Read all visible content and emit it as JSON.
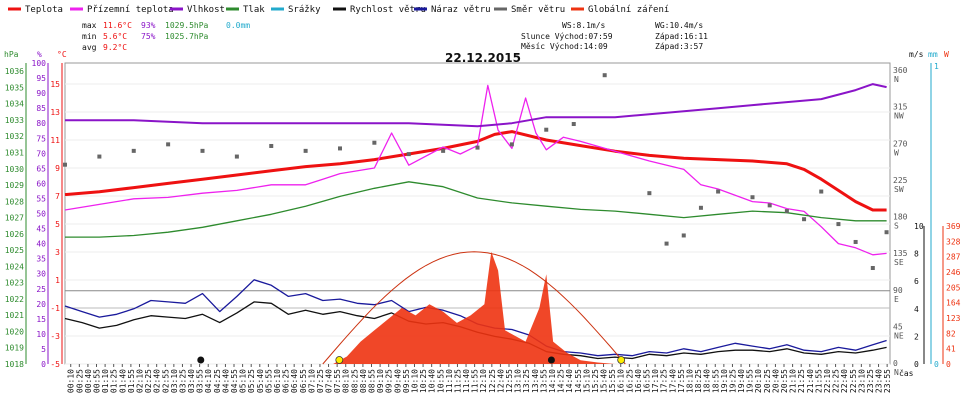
{
  "legend": [
    {
      "label": "Teplota",
      "color": "#ee1111"
    },
    {
      "label": "Přízemní teplota",
      "color": "#ee22ee"
    },
    {
      "label": "Vlhkost",
      "color": "#8a14c8"
    },
    {
      "label": "Tlak",
      "color": "#2e8b2e"
    },
    {
      "label": "Srážky",
      "color": "#22aacc"
    },
    {
      "label": "Rychlost větru",
      "color": "#111111"
    },
    {
      "label": "Náraz větru",
      "color": "#1a1a9c"
    },
    {
      "label": "Směr větru",
      "color": "#666666"
    },
    {
      "label": "Globální záření",
      "color": "#ee3311"
    }
  ],
  "stats": {
    "max": {
      "label": "max",
      "temp": "11.6°C",
      "hum": "93%",
      "press": "1029.5hPa",
      "rain": "0.0mm"
    },
    "min": {
      "label": "min",
      "temp": "5.6°C",
      "hum": "75%",
      "press": "1025.7hPa"
    },
    "avg": {
      "label": "avg",
      "temp": "9.2°C"
    }
  },
  "info": {
    "ws": "WS:8.1m/s",
    "wg": "WG:10.4m/s",
    "sun_rise": "Slunce Východ:07:59",
    "sun_set": "Západ:16:11",
    "moon_rise": "Měsíc  Východ:14:09",
    "moon_set": "Západ:3:57"
  },
  "title": "22.12.2015",
  "units": {
    "hpa": "hPa",
    "pct": "%",
    "degc": "°C",
    "ms": "m/s",
    "mm": "mm",
    "w": "W"
  },
  "xlabel": "čas",
  "chart_data": {
    "type": "line",
    "title": "22.12.2015",
    "x_unit": "time (HH:MM)",
    "x_ticks": [
      "00:10",
      "00:25",
      "00:40",
      "00:55",
      "01:10",
      "01:25",
      "01:40",
      "01:55",
      "02:10",
      "02:25",
      "02:40",
      "02:55",
      "03:10",
      "03:25",
      "03:40",
      "03:55",
      "04:10",
      "04:25",
      "04:40",
      "04:55",
      "05:10",
      "05:25",
      "05:40",
      "05:55",
      "06:10",
      "06:25",
      "06:40",
      "06:55",
      "07:10",
      "07:25",
      "07:40",
      "07:55",
      "08:10",
      "08:25",
      "08:40",
      "08:55",
      "09:10",
      "09:25",
      "09:40",
      "09:55",
      "10:10",
      "10:25",
      "10:40",
      "10:55",
      "11:10",
      "11:25",
      "11:40",
      "11:55",
      "12:10",
      "12:25",
      "12:40",
      "12:55",
      "13:10",
      "13:25",
      "13:40",
      "13:55",
      "14:10",
      "14:25",
      "14:40",
      "14:55",
      "15:10",
      "15:25",
      "15:40",
      "15:55",
      "16:10",
      "16:25",
      "16:40",
      "16:55",
      "17:10",
      "17:25",
      "17:40",
      "17:55",
      "18:10",
      "18:25",
      "18:40",
      "18:55",
      "19:10",
      "19:25",
      "19:40",
      "19:55",
      "20:10",
      "20:25",
      "20:40",
      "20:55",
      "21:10",
      "21:25",
      "21:40",
      "21:55",
      "22:10",
      "22:25",
      "22:40",
      "22:55",
      "23:10",
      "23:25",
      "23:40",
      "23:55"
    ],
    "axes": {
      "pressure_hpa": {
        "ticks": [
          "1018",
          "1019",
          "1020",
          "1021",
          "1022",
          "1023",
          "1024",
          "1025",
          "1026",
          "1027",
          "1028",
          "1029",
          "1030",
          "1031",
          "1032",
          "1033",
          "1034",
          "1035",
          "1036"
        ],
        "range": [
          1018,
          1036.5
        ]
      },
      "humidity_pct": {
        "ticks": [
          "0",
          "5",
          "10",
          "15",
          "20",
          "25",
          "30",
          "35",
          "40",
          "45",
          "50",
          "55",
          "60",
          "65",
          "70",
          "75",
          "80",
          "85",
          "90",
          "95",
          "100"
        ],
        "range": [
          0,
          100
        ]
      },
      "temperature_c": {
        "ticks": [
          "-5",
          "-3",
          "-1",
          "1",
          "3",
          "5",
          "7",
          "9",
          "11",
          "13",
          "15"
        ],
        "range": [
          -5,
          16.5
        ]
      },
      "wind_dir_deg": {
        "ticks": [
          "0",
          "45",
          "90",
          "135",
          "180",
          "225",
          "270",
          "315",
          "360"
        ],
        "tick_letters": [
          "N",
          "NE",
          "E",
          "SE",
          "S",
          "SW",
          "W",
          "NW",
          "N"
        ],
        "range": [
          0,
          370
        ]
      },
      "wind_speed_ms": {
        "ticks": [
          "0",
          "2",
          "4",
          "6",
          "8",
          "10"
        ],
        "range": [
          0,
          10
        ]
      },
      "rain_mm": {
        "ticks": [
          "0",
          "1"
        ],
        "range": [
          0,
          1
        ]
      },
      "radiation_w": {
        "ticks": [
          "0",
          "41",
          "82",
          "123",
          "164",
          "205",
          "246",
          "287",
          "328",
          "369"
        ],
        "range": [
          0,
          369
        ]
      }
    },
    "series": [
      {
        "name": "Teplota",
        "axis": "temperature_c",
        "color": "#ee1111",
        "x": [
          0,
          1,
          2,
          3,
          4,
          5,
          6,
          7,
          8,
          9,
          10,
          11,
          12,
          12.5,
          13,
          14,
          15,
          16,
          17,
          18,
          19,
          20,
          21,
          21.5,
          22,
          22.5,
          23,
          23.5,
          23.9
        ],
        "y": [
          7.1,
          7.3,
          7.6,
          7.9,
          8.2,
          8.5,
          8.8,
          9.1,
          9.3,
          9.6,
          10.0,
          10.4,
          10.9,
          11.4,
          11.6,
          11.0,
          10.6,
          10.2,
          9.9,
          9.7,
          9.6,
          9.5,
          9.3,
          8.9,
          8.2,
          7.4,
          6.6,
          6.0,
          6.0
        ]
      },
      {
        "name": "Přízemní teplota",
        "axis": "temperature_c",
        "color": "#ee22ee",
        "x": [
          0,
          1,
          2,
          3,
          4,
          5,
          6,
          7,
          7.5,
          8,
          9,
          9.5,
          10,
          11,
          11.5,
          12,
          12.3,
          12.6,
          13,
          13.4,
          13.7,
          14,
          14.5,
          15,
          16,
          17,
          18,
          18.5,
          19,
          20,
          20.5,
          21,
          21.5,
          22,
          22.5,
          23,
          23.5,
          23.9
        ],
        "y": [
          6.0,
          6.4,
          6.8,
          6.9,
          7.2,
          7.4,
          7.8,
          7.8,
          8.2,
          8.6,
          9.0,
          11.5,
          9.2,
          10.5,
          10.0,
          10.6,
          14.9,
          11.7,
          10.4,
          14.0,
          11.5,
          10.3,
          11.2,
          10.9,
          10.2,
          9.5,
          8.9,
          7.8,
          7.5,
          6.6,
          6.5,
          6.1,
          5.9,
          4.8,
          3.6,
          3.3,
          2.8,
          2.9
        ]
      },
      {
        "name": "Vlhkost",
        "axis": "humidity_pct",
        "color": "#8a14c8",
        "x": [
          0,
          2,
          4,
          6,
          8,
          10,
          12,
          13,
          14,
          15,
          16,
          17,
          18,
          19,
          20,
          21,
          22,
          23,
          23.5,
          23.9
        ],
        "y": [
          81,
          81,
          80,
          80,
          80,
          80,
          79,
          80,
          82,
          82,
          82,
          83,
          84,
          85,
          86,
          87,
          88,
          91,
          93,
          92
        ]
      },
      {
        "name": "Tlak",
        "axis": "pressure_hpa",
        "color": "#2e8b2e",
        "x": [
          0,
          1,
          2,
          3,
          4,
          5,
          6,
          7,
          8,
          9,
          10,
          11,
          12,
          13,
          14,
          15,
          16,
          17,
          18,
          19,
          20,
          21,
          22,
          23,
          23.9
        ],
        "y": [
          1025.8,
          1025.8,
          1025.9,
          1026.1,
          1026.4,
          1026.8,
          1027.2,
          1027.7,
          1028.3,
          1028.8,
          1029.2,
          1028.9,
          1028.2,
          1027.9,
          1027.7,
          1027.5,
          1027.4,
          1027.2,
          1027.0,
          1027.2,
          1027.4,
          1027.3,
          1027.0,
          1026.8,
          1026.8
        ]
      },
      {
        "name": "Rychlost větru",
        "axis": "wind_speed_ms",
        "color": "#111111",
        "x": [
          0,
          0.5,
          1,
          1.5,
          2,
          2.5,
          3,
          3.5,
          4,
          4.5,
          5,
          5.5,
          6,
          6.5,
          7,
          7.5,
          8,
          8.5,
          9,
          9.5,
          10,
          10.5,
          11,
          11.5,
          12,
          12.5,
          13,
          13.5,
          14,
          14.5,
          15,
          15.5,
          16,
          16.5,
          17,
          17.5,
          18,
          18.5,
          19,
          19.5,
          20,
          20.5,
          21,
          21.5,
          22,
          22.5,
          23,
          23.5,
          23.9
        ],
        "y": [
          3.3,
          3.0,
          2.6,
          2.8,
          3.2,
          3.5,
          3.4,
          3.3,
          3.6,
          3.0,
          3.7,
          4.5,
          4.4,
          3.6,
          3.9,
          3.6,
          3.8,
          3.5,
          3.3,
          3.7,
          3.1,
          2.9,
          3.0,
          2.7,
          2.3,
          2.0,
          1.8,
          1.5,
          0.9,
          0.7,
          0.6,
          0.4,
          0.5,
          0.4,
          0.7,
          0.6,
          0.8,
          0.7,
          0.9,
          1.0,
          1.0,
          0.9,
          1.1,
          0.8,
          0.7,
          0.9,
          0.8,
          1.0,
          1.2
        ]
      },
      {
        "name": "Náraz větru",
        "axis": "wind_speed_ms",
        "color": "#1a1a9c",
        "x": [
          0,
          0.5,
          1,
          1.5,
          2,
          2.5,
          3,
          3.5,
          4,
          4.5,
          5,
          5.5,
          6,
          6.5,
          7,
          7.5,
          8,
          8.5,
          9,
          9.5,
          10,
          10.5,
          11,
          11.5,
          12,
          12.5,
          13,
          13.5,
          14,
          14.5,
          15,
          15.5,
          16,
          16.5,
          17,
          17.5,
          18,
          18.5,
          19,
          19.5,
          20,
          20.5,
          21,
          21.5,
          22,
          22.5,
          23,
          23.5,
          23.9
        ],
        "y": [
          4.2,
          3.8,
          3.4,
          3.6,
          4.0,
          4.6,
          4.5,
          4.4,
          5.1,
          3.8,
          4.9,
          6.1,
          5.7,
          4.9,
          5.1,
          4.6,
          4.7,
          4.4,
          4.3,
          4.6,
          3.8,
          4.1,
          3.9,
          3.5,
          2.9,
          2.6,
          2.5,
          2.1,
          1.3,
          0.9,
          0.8,
          0.6,
          0.7,
          0.6,
          0.9,
          0.8,
          1.1,
          0.9,
          1.2,
          1.5,
          1.3,
          1.1,
          1.4,
          1.0,
          0.9,
          1.2,
          1.0,
          1.4,
          1.7
        ]
      },
      {
        "name": "Směr větru",
        "axis": "wind_dir_deg",
        "color": "#666666",
        "type": "scatter",
        "x": [
          0,
          1,
          2,
          3,
          4,
          5,
          6,
          7,
          8,
          9,
          10,
          11,
          12,
          13,
          14,
          14.8,
          15.7,
          17,
          17.5,
          18,
          18.5,
          19,
          20,
          20.5,
          21,
          21.5,
          22,
          22.5,
          23,
          23.5,
          23.9
        ],
        "y": [
          245,
          255,
          262,
          270,
          262,
          255,
          268,
          262,
          265,
          272,
          258,
          262,
          266,
          270,
          288,
          295,
          355,
          210,
          148,
          158,
          192,
          212,
          205,
          195,
          188,
          178,
          212,
          172,
          150,
          118,
          162
        ]
      },
      {
        "name": "Globální záření",
        "axis": "radiation_w",
        "color": "#ee3311",
        "type": "area",
        "x": [
          7.8,
          8.2,
          8.6,
          9.0,
          9.4,
          9.8,
          10.2,
          10.6,
          11.0,
          11.4,
          11.8,
          12.2,
          12.4,
          12.6,
          12.8,
          13.0,
          13.4,
          13.8,
          14.0,
          14.2,
          14.6,
          15.0,
          15.5,
          16.0
        ],
        "y": [
          0,
          20,
          60,
          90,
          120,
          150,
          130,
          160,
          140,
          110,
          130,
          160,
          300,
          250,
          90,
          80,
          60,
          150,
          240,
          60,
          30,
          10,
          4,
          0
        ]
      }
    ]
  }
}
